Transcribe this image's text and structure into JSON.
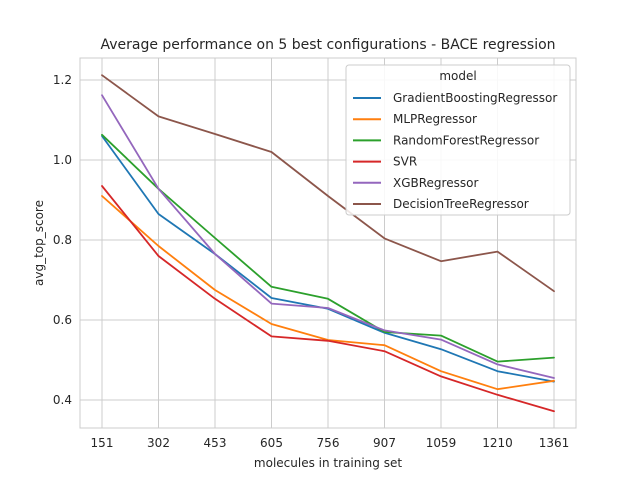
{
  "chart_data": {
    "type": "line",
    "title": "Average performance on 5 best configurations - BACE regression",
    "xlabel": "molecules in training set",
    "ylabel": "avg_top_score",
    "categories": [
      "151",
      "302",
      "453",
      "605",
      "756",
      "907",
      "1059",
      "1210",
      "1361"
    ],
    "yticks": [
      "0.4",
      "0.6",
      "0.8",
      "1.0",
      "1.2"
    ],
    "ylim": [
      0.33,
      1.255
    ],
    "grid": true,
    "legend": {
      "title": "model",
      "placement": "top-right"
    },
    "series": [
      {
        "name": "GradientBoostingRegressor",
        "color": "#1f77b4",
        "values": [
          1.06,
          0.865,
          0.765,
          0.655,
          0.628,
          0.568,
          0.527,
          0.472,
          0.446
        ]
      },
      {
        "name": "MLPRegressor",
        "color": "#ff7f0e",
        "values": [
          0.91,
          0.785,
          0.675,
          0.59,
          0.55,
          0.537,
          0.472,
          0.427,
          0.448
        ]
      },
      {
        "name": "RandomForestRegressor",
        "color": "#2ca02c",
        "values": [
          1.063,
          0.928,
          0.805,
          0.683,
          0.653,
          0.57,
          0.561,
          0.496,
          0.506
        ]
      },
      {
        "name": "SVR",
        "color": "#d62728",
        "values": [
          0.935,
          0.76,
          0.653,
          0.559,
          0.548,
          0.522,
          0.459,
          0.413,
          0.372
        ]
      },
      {
        "name": "XGBRegressor",
        "color": "#9467bd",
        "values": [
          1.162,
          0.928,
          0.765,
          0.641,
          0.63,
          0.574,
          0.551,
          0.489,
          0.455
        ]
      },
      {
        "name": "DecisionTreeRegressor",
        "color": "#8c564b",
        "values": [
          1.212,
          1.109,
          1.065,
          1.02,
          0.91,
          0.804,
          0.747,
          0.771,
          0.672
        ]
      }
    ]
  }
}
